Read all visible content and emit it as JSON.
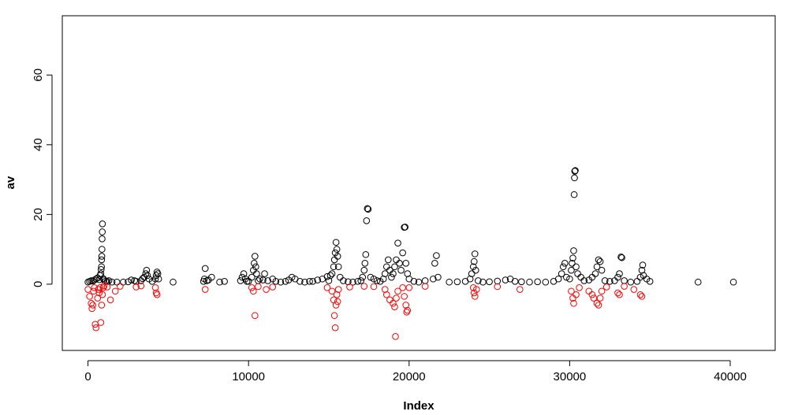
{
  "chart_data": {
    "type": "scatter",
    "title": "",
    "xlabel": "Index",
    "ylabel": "av",
    "xlim": [
      -1600,
      42800
    ],
    "ylim": [
      -19,
      77
    ],
    "xticks": [
      0,
      10000,
      20000,
      30000,
      40000
    ],
    "yticks": [
      0,
      20,
      40,
      60
    ],
    "x_tick_labels": [
      "0",
      "10000",
      "20000",
      "30000",
      "40000"
    ],
    "y_tick_labels": [
      "0",
      "20",
      "40",
      "60"
    ],
    "grid": false,
    "marker": "open-circle",
    "series": [
      {
        "color": "#000000",
        "points": [
          [
            0,
            0.6
          ],
          [
            100,
            0.8
          ],
          [
            200,
            1.0
          ],
          [
            300,
            0.9
          ],
          [
            400,
            1.2
          ],
          [
            500,
            1.5
          ],
          [
            600,
            1.8
          ],
          [
            700,
            1.3
          ],
          [
            750,
            2.5
          ],
          [
            800,
            3.0
          ],
          [
            820,
            4.2
          ],
          [
            840,
            5.0
          ],
          [
            850,
            7.0
          ],
          [
            860,
            8.0
          ],
          [
            870,
            10.0
          ],
          [
            880,
            13.0
          ],
          [
            890,
            15.0
          ],
          [
            900,
            17.3
          ],
          [
            950,
            1.6
          ],
          [
            1000,
            1.2
          ],
          [
            1100,
            0.9
          ],
          [
            1200,
            0.8
          ],
          [
            1300,
            1.0
          ],
          [
            1500,
            0.6
          ],
          [
            1800,
            0.6
          ],
          [
            2200,
            0.6
          ],
          [
            2500,
            0.7
          ],
          [
            2700,
            1.2
          ],
          [
            2900,
            1.0
          ],
          [
            3000,
            0.8
          ],
          [
            3300,
            1.0
          ],
          [
            3400,
            1.6
          ],
          [
            3500,
            2.0
          ],
          [
            3600,
            3.0
          ],
          [
            3650,
            4.0
          ],
          [
            3700,
            2.5
          ],
          [
            3800,
            1.5
          ],
          [
            4000,
            0.8
          ],
          [
            4200,
            1.5
          ],
          [
            4250,
            2.5
          ],
          [
            4300,
            3.5
          ],
          [
            4350,
            3.0
          ],
          [
            4400,
            1.5
          ],
          [
            5300,
            0.6
          ],
          [
            7200,
            0.8
          ],
          [
            7250,
            1.5
          ],
          [
            7300,
            4.5
          ],
          [
            7400,
            1.0
          ],
          [
            7500,
            1.2
          ],
          [
            7700,
            2.0
          ],
          [
            8200,
            0.6
          ],
          [
            8500,
            0.8
          ],
          [
            9500,
            1.0
          ],
          [
            9600,
            2.0
          ],
          [
            9700,
            3.0
          ],
          [
            9800,
            1.5
          ],
          [
            9900,
            0.8
          ],
          [
            10000,
            0.8
          ],
          [
            10200,
            2.0
          ],
          [
            10300,
            4.0
          ],
          [
            10350,
            6.0
          ],
          [
            10400,
            8.0
          ],
          [
            10450,
            5.0
          ],
          [
            10500,
            3.0
          ],
          [
            10600,
            1.0
          ],
          [
            10700,
            1.5
          ],
          [
            10900,
            1.2
          ],
          [
            11000,
            3.0
          ],
          [
            11200,
            1.0
          ],
          [
            11500,
            1.5
          ],
          [
            11700,
            0.8
          ],
          [
            12000,
            0.6
          ],
          [
            12300,
            0.8
          ],
          [
            12500,
            1.2
          ],
          [
            12700,
            2.0
          ],
          [
            12900,
            1.5
          ],
          [
            13200,
            0.8
          ],
          [
            13500,
            0.6
          ],
          [
            13800,
            0.8
          ],
          [
            14000,
            0.8
          ],
          [
            14300,
            1.2
          ],
          [
            14600,
            1.5
          ],
          [
            14900,
            2.2
          ],
          [
            15000,
            1.0
          ],
          [
            15100,
            2.5
          ],
          [
            15200,
            3.0
          ],
          [
            15300,
            5.0
          ],
          [
            15350,
            7.0
          ],
          [
            15400,
            9.0
          ],
          [
            15450,
            12.0
          ],
          [
            15500,
            10.0
          ],
          [
            15550,
            8.0
          ],
          [
            15600,
            5.0
          ],
          [
            15700,
            2.0
          ],
          [
            15900,
            1.0
          ],
          [
            16200,
            0.7
          ],
          [
            16500,
            0.6
          ],
          [
            16800,
            0.8
          ],
          [
            17000,
            1.0
          ],
          [
            17100,
            2.0
          ],
          [
            17200,
            4.0
          ],
          [
            17250,
            6.0
          ],
          [
            17300,
            8.5
          ],
          [
            17350,
            18.2
          ],
          [
            17400,
            21.7
          ],
          [
            17450,
            21.5
          ],
          [
            17600,
            2.0
          ],
          [
            17800,
            1.5
          ],
          [
            18000,
            1.0
          ],
          [
            18200,
            0.8
          ],
          [
            18400,
            1.5
          ],
          [
            18500,
            3.0
          ],
          [
            18600,
            5.0
          ],
          [
            18700,
            7.0
          ],
          [
            18800,
            4.0
          ],
          [
            18900,
            2.0
          ],
          [
            19000,
            3.0
          ],
          [
            19100,
            5.0
          ],
          [
            19200,
            7.0
          ],
          [
            19300,
            11.8
          ],
          [
            19400,
            6.0
          ],
          [
            19500,
            4.0
          ],
          [
            19600,
            9.0
          ],
          [
            19700,
            16.3
          ],
          [
            19750,
            16.4
          ],
          [
            19800,
            6.0
          ],
          [
            19900,
            3.0
          ],
          [
            20000,
            1.5
          ],
          [
            20300,
            0.8
          ],
          [
            20600,
            0.6
          ],
          [
            21000,
            1.0
          ],
          [
            21500,
            1.5
          ],
          [
            21600,
            6.0
          ],
          [
            21700,
            8.2
          ],
          [
            21800,
            2.0
          ],
          [
            22500,
            0.6
          ],
          [
            23000,
            0.7
          ],
          [
            23500,
            0.8
          ],
          [
            23800,
            1.5
          ],
          [
            23900,
            3.0
          ],
          [
            24000,
            5.0
          ],
          [
            24050,
            6.5
          ],
          [
            24100,
            8.7
          ],
          [
            24150,
            4.0
          ],
          [
            24300,
            1.0
          ],
          [
            24600,
            0.6
          ],
          [
            25000,
            0.7
          ],
          [
            25500,
            0.9
          ],
          [
            26000,
            1.2
          ],
          [
            26300,
            1.5
          ],
          [
            26600,
            0.8
          ],
          [
            27000,
            0.7
          ],
          [
            27500,
            0.6
          ],
          [
            28000,
            0.7
          ],
          [
            28500,
            0.6
          ],
          [
            29000,
            0.8
          ],
          [
            29300,
            1.5
          ],
          [
            29500,
            3.0
          ],
          [
            29600,
            5.0
          ],
          [
            29700,
            6.0
          ],
          [
            29800,
            2.0
          ],
          [
            30000,
            1.5
          ],
          [
            30100,
            4.0
          ],
          [
            30150,
            6.0
          ],
          [
            30200,
            7.5
          ],
          [
            30250,
            9.6
          ],
          [
            30280,
            25.7
          ],
          [
            30300,
            30.5
          ],
          [
            30320,
            32.4
          ],
          [
            30350,
            32.6
          ],
          [
            30400,
            5.0
          ],
          [
            30500,
            3.0
          ],
          [
            30700,
            2.0
          ],
          [
            30900,
            1.0
          ],
          [
            31200,
            1.2
          ],
          [
            31400,
            2.0
          ],
          [
            31600,
            3.0
          ],
          [
            31700,
            5.0
          ],
          [
            31800,
            7.0
          ],
          [
            31900,
            6.5
          ],
          [
            32000,
            4.0
          ],
          [
            32200,
            1.0
          ],
          [
            32500,
            0.8
          ],
          [
            32800,
            1.0
          ],
          [
            33000,
            2.0
          ],
          [
            33100,
            3.0
          ],
          [
            33200,
            7.8
          ],
          [
            33250,
            7.6
          ],
          [
            33400,
            1.0
          ],
          [
            33800,
            0.6
          ],
          [
            34200,
            0.8
          ],
          [
            34400,
            2.0
          ],
          [
            34500,
            4.0
          ],
          [
            34550,
            5.5
          ],
          [
            34600,
            2.5
          ],
          [
            34800,
            1.5
          ],
          [
            35000,
            0.8
          ],
          [
            38000,
            0.6
          ],
          [
            40200,
            0.6
          ]
        ]
      },
      {
        "color": "#ff0000",
        "points": [
          [
            0,
            -1.5
          ],
          [
            100,
            -3.5
          ],
          [
            200,
            -5.5
          ],
          [
            250,
            -7.0
          ],
          [
            300,
            -6.0
          ],
          [
            350,
            -2.0
          ],
          [
            400,
            -1.0
          ],
          [
            450,
            -11.5
          ],
          [
            500,
            -12.5
          ],
          [
            600,
            -4.0
          ],
          [
            650,
            -1.5
          ],
          [
            700,
            -2.5
          ],
          [
            750,
            -1.0
          ],
          [
            800,
            -11.0
          ],
          [
            850,
            -6.0
          ],
          [
            900,
            -3.0
          ],
          [
            950,
            -1.0
          ],
          [
            1000,
            -0.5
          ],
          [
            1200,
            -0.8
          ],
          [
            1400,
            -4.5
          ],
          [
            1700,
            -2.0
          ],
          [
            2000,
            -0.6
          ],
          [
            3000,
            -0.8
          ],
          [
            3300,
            -0.5
          ],
          [
            4200,
            -1.0
          ],
          [
            4250,
            -2.5
          ],
          [
            4300,
            -3.0
          ],
          [
            7300,
            -1.5
          ],
          [
            10200,
            -1.0
          ],
          [
            10300,
            -2.0
          ],
          [
            10400,
            -9.0
          ],
          [
            10600,
            -0.7
          ],
          [
            11100,
            -1.5
          ],
          [
            11500,
            -0.8
          ],
          [
            14900,
            -1.0
          ],
          [
            15200,
            -2.0
          ],
          [
            15300,
            -4.5
          ],
          [
            15350,
            -9.0
          ],
          [
            15400,
            -12.5
          ],
          [
            15450,
            -6.0
          ],
          [
            15500,
            -3.0
          ],
          [
            15550,
            -5.0
          ],
          [
            15600,
            -1.5
          ],
          [
            16300,
            -0.8
          ],
          [
            17200,
            -0.6
          ],
          [
            17800,
            -0.7
          ],
          [
            18500,
            -1.5
          ],
          [
            18600,
            -3.0
          ],
          [
            18800,
            -4.5
          ],
          [
            19000,
            -5.5
          ],
          [
            19100,
            -6.5
          ],
          [
            19150,
            -15.0
          ],
          [
            19200,
            -4.0
          ],
          [
            19300,
            -2.0
          ],
          [
            19600,
            -1.0
          ],
          [
            19700,
            -3.5
          ],
          [
            19800,
            -6.0
          ],
          [
            19850,
            -8.0
          ],
          [
            19900,
            -7.5
          ],
          [
            20000,
            -1.0
          ],
          [
            21000,
            -0.6
          ],
          [
            24000,
            -1.0
          ],
          [
            24050,
            -2.5
          ],
          [
            24100,
            -3.5
          ],
          [
            24200,
            -1.5
          ],
          [
            25500,
            -0.7
          ],
          [
            26900,
            -1.5
          ],
          [
            30100,
            -2.0
          ],
          [
            30200,
            -4.0
          ],
          [
            30250,
            -5.5
          ],
          [
            30400,
            -3.0
          ],
          [
            30600,
            -1.0
          ],
          [
            31200,
            -2.0
          ],
          [
            31400,
            -3.0
          ],
          [
            31500,
            -4.0
          ],
          [
            31700,
            -5.5
          ],
          [
            31800,
            -6.0
          ],
          [
            31900,
            -4.0
          ],
          [
            32000,
            -2.0
          ],
          [
            32300,
            -0.8
          ],
          [
            33000,
            -2.5
          ],
          [
            33100,
            -3.0
          ],
          [
            33400,
            -0.6
          ],
          [
            34000,
            -1.5
          ],
          [
            34400,
            -3.0
          ],
          [
            34500,
            -3.5
          ]
        ]
      }
    ]
  }
}
